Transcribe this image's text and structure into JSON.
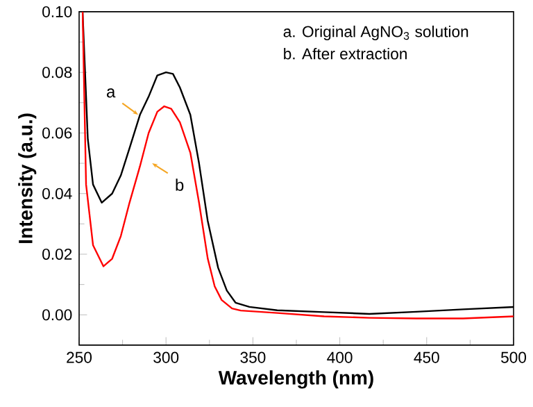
{
  "chart_data": {
    "type": "line",
    "xlabel": "Wavelength (nm)",
    "ylabel": "Intensity (a.u.)",
    "xlim": [
      250,
      500
    ],
    "ylim": [
      -0.01,
      0.1
    ],
    "xticks": [
      250,
      300,
      350,
      400,
      450,
      500
    ],
    "yticks": [
      {
        "value": 0,
        "label": "0.00"
      },
      {
        "value": 0.02,
        "label": "0.02"
      },
      {
        "value": 0.04,
        "label": "0.04"
      },
      {
        "value": 0.06,
        "label": "0.06"
      },
      {
        "value": 0.08,
        "label": "0.08"
      },
      {
        "value": 0.1,
        "label": "0.10"
      }
    ],
    "grid": false,
    "marker": "none",
    "line_style": "solid",
    "series": [
      {
        "color": "#000000",
        "x": [
          252,
          255,
          258,
          263,
          269,
          274,
          279,
          285,
          290,
          295,
          300,
          304,
          308,
          314,
          319,
          324,
          330,
          335,
          340,
          348,
          364,
          391,
          417,
          444,
          471,
          500
        ],
        "values": [
          0.1,
          0.058,
          0.043,
          0.037,
          0.04,
          0.046,
          0.055,
          0.066,
          0.072,
          0.079,
          0.08,
          0.0795,
          0.075,
          0.066,
          0.05,
          0.031,
          0.0155,
          0.008,
          0.004,
          0.0026,
          0.0015,
          0.0009,
          0.0003,
          0.001,
          0.0018,
          0.0026
        ]
      },
      {
        "color": "#ff0000",
        "x": [
          252,
          254,
          258,
          264,
          269,
          274,
          279,
          285,
          290,
          295,
          299,
          303,
          308,
          314,
          319,
          324,
          328,
          332,
          338,
          343,
          364,
          391,
          417,
          444,
          471,
          500
        ],
        "values": [
          0.1,
          0.043,
          0.023,
          0.016,
          0.0185,
          0.026,
          0.037,
          0.049,
          0.06,
          0.067,
          0.0688,
          0.068,
          0.0635,
          0.0535,
          0.037,
          0.0186,
          0.0094,
          0.0049,
          0.0021,
          0.0014,
          0.0006,
          -0.0005,
          -0.001,
          -0.0012,
          -0.0012,
          -0.0005
        ]
      }
    ],
    "annotations": [
      {
        "text": "a",
        "x": 284,
        "y": 0.066
      },
      {
        "text": "b",
        "x": 292,
        "y": 0.05
      },
      "a. Original AgNO$_{3}$ solution",
      "b. After extraction"
    ]
  }
}
